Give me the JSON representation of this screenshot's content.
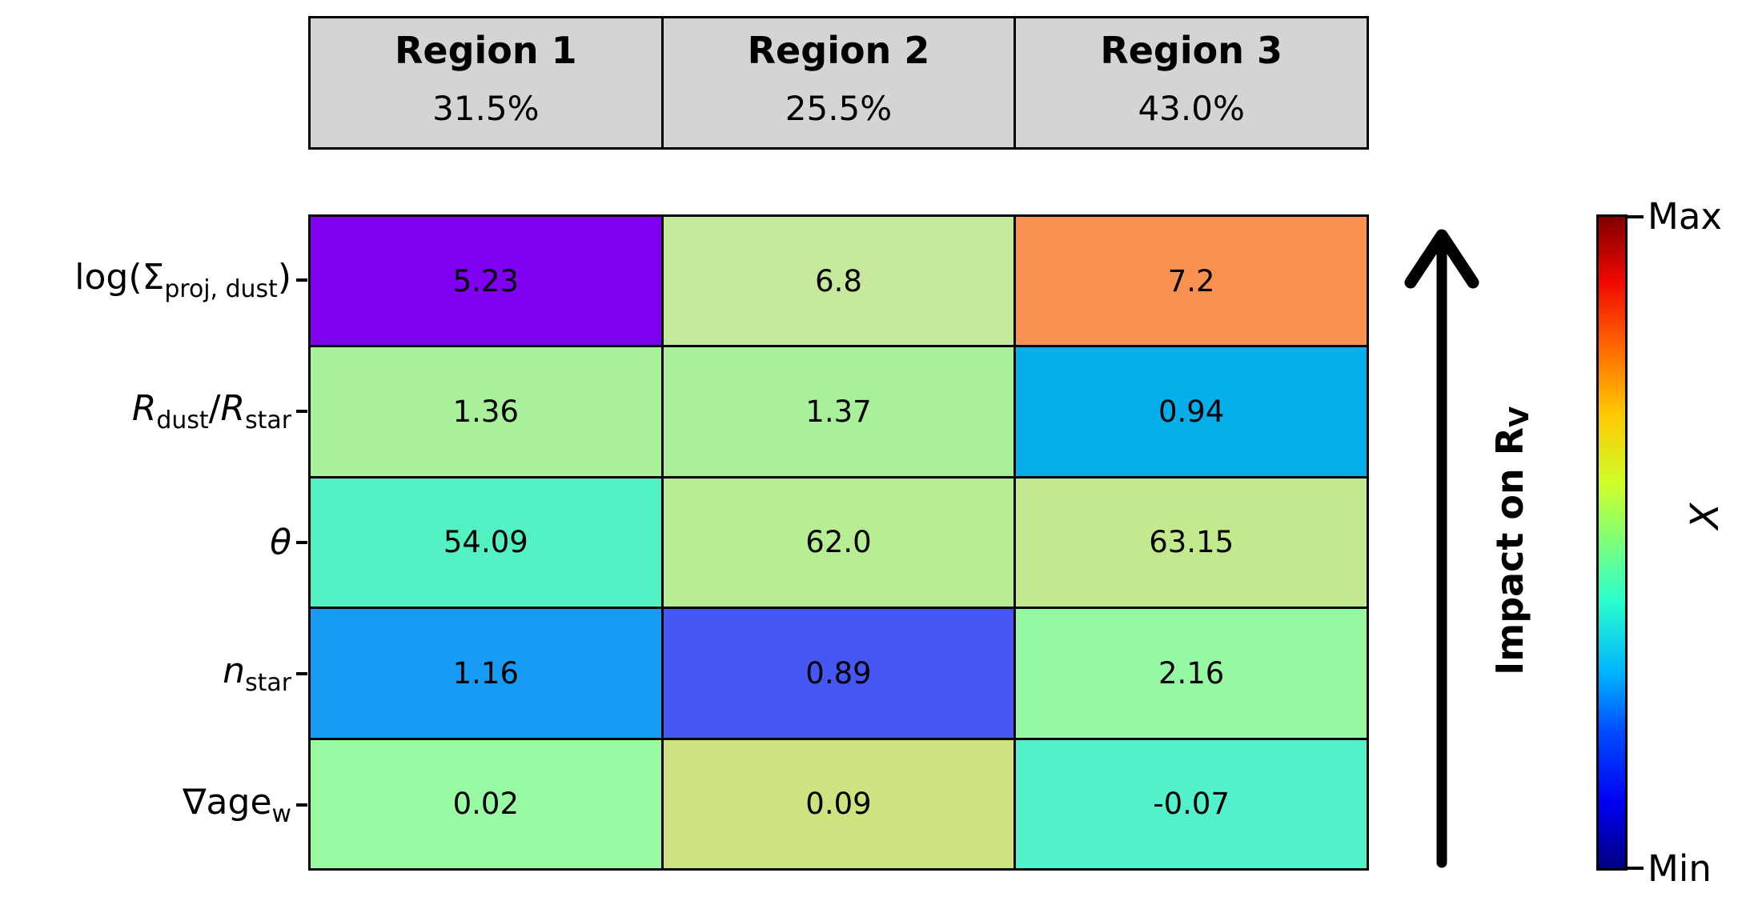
{
  "header": {
    "background_color": "#d4d4d4",
    "columns": [
      {
        "name": "Region 1",
        "percent": "31.5%"
      },
      {
        "name": "Region 2",
        "percent": "25.5%"
      },
      {
        "name": "Region 3",
        "percent": "43.0%"
      }
    ]
  },
  "heatmap": {
    "row_labels": [
      {
        "plain": "log(Σ_proj, dust)",
        "parts": [
          {
            "text": "log(Σ"
          },
          {
            "text": "proj, dust",
            "style": "sub"
          },
          {
            "text": ")"
          }
        ]
      },
      {
        "plain": "R_dust/R_star",
        "parts": [
          {
            "text": "R",
            "style": "italic"
          },
          {
            "text": "dust",
            "style": "sub"
          },
          {
            "text": "/"
          },
          {
            "text": "R",
            "style": "italic"
          },
          {
            "text": "star",
            "style": "sub"
          }
        ]
      },
      {
        "plain": "θ",
        "parts": [
          {
            "text": "θ",
            "style": "italic"
          }
        ]
      },
      {
        "plain": "n_star",
        "parts": [
          {
            "text": "n",
            "style": "italic"
          },
          {
            "text": "star",
            "style": "sub"
          }
        ]
      },
      {
        "plain": "∇age_w",
        "parts": [
          {
            "text": "∇age"
          },
          {
            "text": "w",
            "style": "sub"
          }
        ]
      }
    ],
    "rows": [
      {
        "cells": [
          {
            "value": "5.23",
            "color": "#7f00f0"
          },
          {
            "value": "6.8",
            "color": "#c6e89a"
          },
          {
            "value": "7.2",
            "color": "#fb9150"
          }
        ]
      },
      {
        "cells": [
          {
            "value": "1.36",
            "color": "#a8f19a"
          },
          {
            "value": "1.37",
            "color": "#a8f19a"
          },
          {
            "value": "0.94",
            "color": "#06aeea"
          }
        ]
      },
      {
        "cells": [
          {
            "value": "54.09",
            "color": "#52f0c2"
          },
          {
            "value": "62.0",
            "color": "#b7ee93"
          },
          {
            "value": "63.15",
            "color": "#c3e98e"
          }
        ]
      },
      {
        "cells": [
          {
            "value": "1.16",
            "color": "#189bf2"
          },
          {
            "value": "0.89",
            "color": "#4557f2"
          },
          {
            "value": "2.16",
            "color": "#97f8a4"
          }
        ]
      },
      {
        "cells": [
          {
            "value": "0.02",
            "color": "#99faa4"
          },
          {
            "value": "0.09",
            "color": "#cde380"
          },
          {
            "value": "-0.07",
            "color": "#53f0cc"
          }
        ]
      }
    ]
  },
  "annotations": {
    "impact_label": {
      "prefix": "Impact on R",
      "subscript": "V"
    },
    "colorbar": {
      "top_label": "Max",
      "bottom_label": "Min",
      "axis_label": "X",
      "colormap": "jet",
      "top_color": "#800000",
      "bottom_color": "#000080"
    }
  },
  "chart_data": {
    "type": "heatmap",
    "title": "",
    "columns": [
      "Region 1",
      "Region 2",
      "Region 3"
    ],
    "column_percentages": [
      31.5,
      25.5,
      43.0
    ],
    "row_labels": [
      "log(Σ_proj, dust)",
      "R_dust/R_star",
      "θ",
      "n_star",
      "∇age_w"
    ],
    "values": [
      [
        5.23,
        6.8,
        7.2
      ],
      [
        1.36,
        1.37,
        0.94
      ],
      [
        54.09,
        62.0,
        63.15
      ],
      [
        1.16,
        0.89,
        2.16
      ],
      [
        0.02,
        0.09,
        -0.07
      ]
    ],
    "cell_colors": [
      [
        "#7f00f0",
        "#c6e89a",
        "#fb9150"
      ],
      [
        "#a8f19a",
        "#a8f19a",
        "#06aeea"
      ],
      [
        "#52f0c2",
        "#b7ee93",
        "#c3e98e"
      ],
      [
        "#189bf2",
        "#4557f2",
        "#97f8a4"
      ],
      [
        "#99faa4",
        "#cde380",
        "#53f0cc"
      ]
    ],
    "colorbar": {
      "label": "X",
      "max_label": "Max",
      "min_label": "Min",
      "colormap": "jet"
    },
    "arrow_annotation": "Impact on R_V (arrow pointing up)",
    "legend_position": "right",
    "grid": false
  }
}
